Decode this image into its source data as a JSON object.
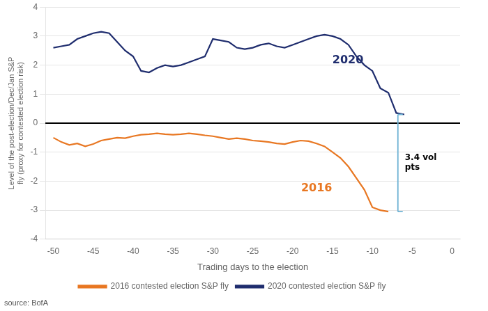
{
  "chart_data": {
    "type": "line",
    "xlabel": "Trading days to the election",
    "ylabel": "Level of the post-election/Dec/Jan S&P\nfly (proxy for contested election risk)",
    "x": [
      -50,
      -49,
      -48,
      -47,
      -46,
      -45,
      -44,
      -43,
      -42,
      -41,
      -40,
      -39,
      -38,
      -37,
      -36,
      -35,
      -34,
      -33,
      -32,
      -31,
      -30,
      -29,
      -28,
      -27,
      -26,
      -25,
      -24,
      -23,
      -22,
      -21,
      -20,
      -19,
      -18,
      -17,
      -16,
      -15,
      -14,
      -13,
      -12,
      -11,
      -10,
      -9,
      -8,
      -7,
      -6
    ],
    "series": [
      {
        "name": "2016 contested election S&P fly",
        "color": "#E87722",
        "values": [
          -0.5,
          -0.65,
          -0.75,
          -0.7,
          -0.8,
          -0.72,
          -0.6,
          -0.55,
          -0.5,
          -0.52,
          -0.45,
          -0.4,
          -0.38,
          -0.35,
          -0.38,
          -0.4,
          -0.38,
          -0.35,
          -0.38,
          -0.42,
          -0.45,
          -0.5,
          -0.55,
          -0.52,
          -0.55,
          -0.6,
          -0.62,
          -0.65,
          -0.7,
          -0.72,
          -0.65,
          -0.6,
          -0.62,
          -0.7,
          -0.8,
          -1.0,
          -1.2,
          -1.5,
          -1.9,
          -2.3,
          -2.9,
          -3.0,
          -3.05,
          null,
          null
        ]
      },
      {
        "name": "2020 contested election S&P fly",
        "color": "#1F2D6E",
        "values": [
          2.6,
          2.65,
          2.7,
          2.9,
          3.0,
          3.1,
          3.15,
          3.1,
          2.8,
          2.5,
          2.3,
          1.8,
          1.75,
          1.9,
          2.0,
          1.95,
          2.0,
          2.1,
          2.2,
          2.3,
          2.9,
          2.85,
          2.8,
          2.6,
          2.55,
          2.6,
          2.7,
          2.75,
          2.65,
          2.6,
          2.7,
          2.8,
          2.9,
          3.0,
          3.05,
          3.0,
          2.9,
          2.7,
          2.3,
          2.0,
          1.8,
          1.2,
          1.05,
          0.35,
          0.3
        ]
      }
    ],
    "xlim": [
      -51,
      1
    ],
    "ylim": [
      -4,
      4
    ],
    "xticks": [
      -50,
      -45,
      -40,
      -35,
      -30,
      -25,
      -20,
      -15,
      -10,
      -5,
      0
    ],
    "yticks": [
      -4,
      -3,
      -2,
      -1,
      0,
      1,
      2,
      3,
      4
    ],
    "grid": true,
    "legend": "bottom",
    "annotations": [
      {
        "text": "2016",
        "color": "#E87722"
      },
      {
        "text": "2020",
        "color": "#1F2D6E"
      }
    ],
    "bracket": {
      "x": -6.8,
      "top": 0.3,
      "bottom": -3.05,
      "label": "3.4 vol\npts",
      "color": "#6EB2D4"
    },
    "source": "source: BofA"
  }
}
